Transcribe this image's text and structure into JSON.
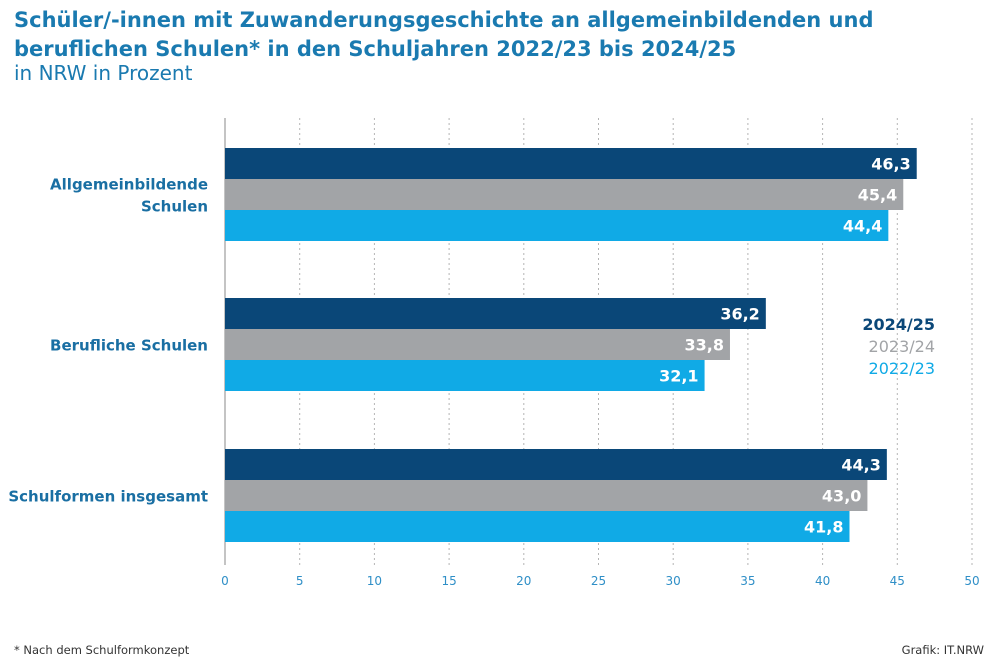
{
  "header": {
    "title": "Schüler/-innen mit Zuwanderungsgeschichte an allgemeinbildenden und beruflichen Schulen* in den Schuljahren 2022/23 bis 2024/25",
    "subtitle": "in NRW in Prozent"
  },
  "footer": {
    "footnote": "* Nach dem Schulformkonzept",
    "credit": "Grafik: IT.NRW"
  },
  "colors": {
    "2024/25": "#0a4778",
    "2023/24": "#a2a4a7",
    "2022/23": "#10aae6",
    "category_label": "#1a6fa3",
    "axis_tick": "#2f8fc7"
  },
  "chart_data": {
    "type": "bar",
    "orientation": "horizontal",
    "categories": [
      "Allgemeinbildende Schulen",
      "Berufliche Schulen",
      "Schulformen insgesamt"
    ],
    "category_display": [
      [
        "Allgemeinbildende",
        "Schulen"
      ],
      [
        "Berufliche Schulen"
      ],
      [
        "Schulformen insgesamt"
      ]
    ],
    "series": [
      {
        "name": "2024/25",
        "values": [
          46.3,
          36.2,
          44.3
        ],
        "labels": [
          "46,3",
          "36,2",
          "44,3"
        ]
      },
      {
        "name": "2023/24",
        "values": [
          45.4,
          33.8,
          43.0
        ],
        "labels": [
          "45,4",
          "33,8",
          "43,0"
        ]
      },
      {
        "name": "2022/23",
        "values": [
          44.4,
          32.1,
          41.8
        ],
        "labels": [
          "44,4",
          "32,1",
          "41,8"
        ]
      }
    ],
    "xlim": [
      0,
      50
    ],
    "xticks": [
      0,
      5,
      10,
      15,
      20,
      25,
      30,
      35,
      40,
      45,
      50
    ],
    "grid": "vertical dotted",
    "legend_position": "right"
  }
}
